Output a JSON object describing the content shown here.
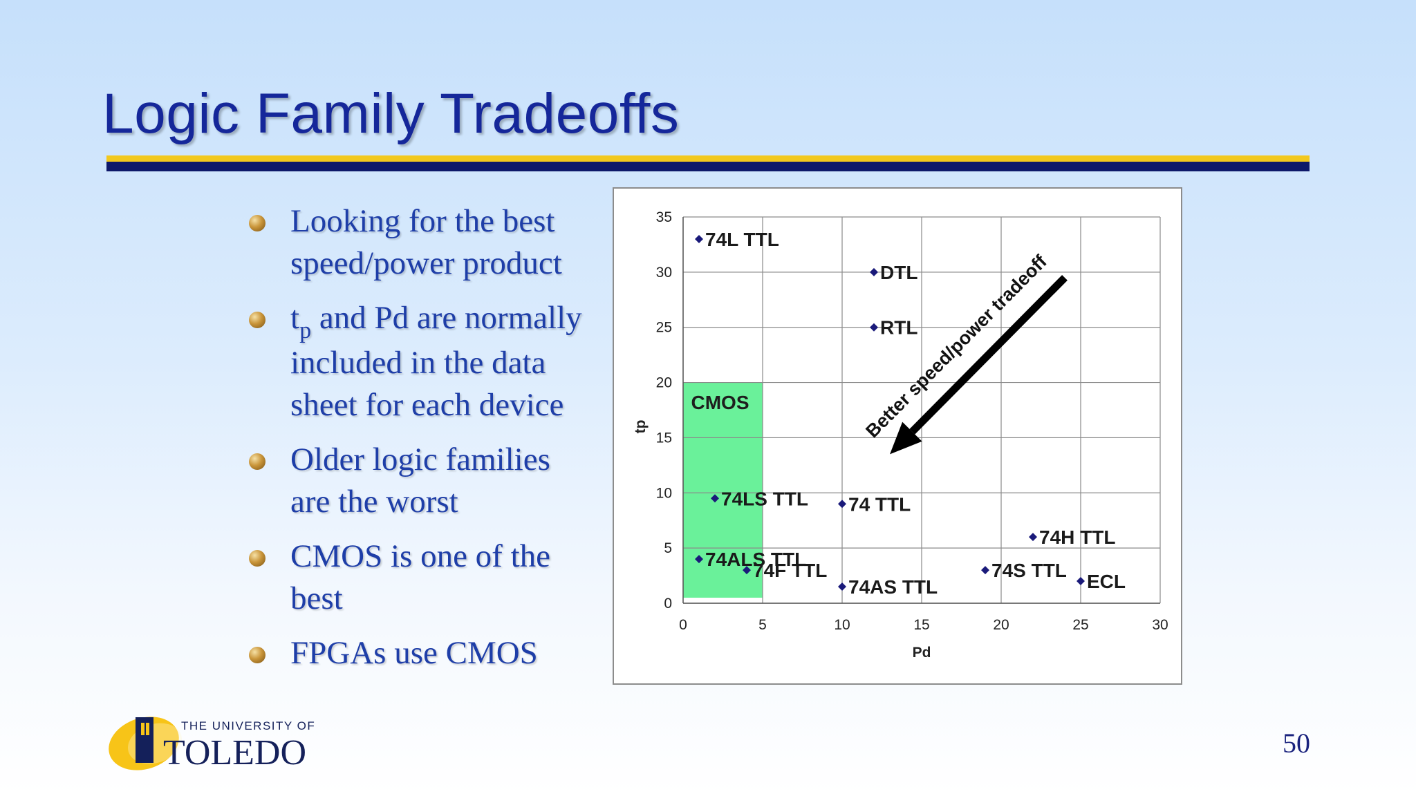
{
  "slide": {
    "title": "Logic Family Tradeoffs",
    "page_number": "50"
  },
  "bullets": [
    {
      "lines": [
        "Looking for the best",
        "speed/power product"
      ]
    },
    {
      "pre": "t",
      "sub": "p",
      "post": " and Pd are normally",
      "lines": [
        "included in the data",
        "sheet for each device"
      ]
    },
    {
      "lines": [
        "Older logic families",
        "are the worst"
      ]
    },
    {
      "lines": [
        "CMOS is one of the",
        "best"
      ]
    },
    {
      "lines": [
        "FPGAs use CMOS"
      ]
    }
  ],
  "logo": {
    "line1": "THE UNIVERSITY OF",
    "line2": "TOLEDO",
    "colors": {
      "gold": "#f7c418",
      "navy": "#14205a"
    }
  },
  "chart_data": {
    "type": "scatter",
    "xlabel": "Pd",
    "ylabel": "tp",
    "xlim": [
      0,
      30
    ],
    "ylim": [
      0,
      35
    ],
    "x_ticks": [
      0,
      5,
      10,
      15,
      20,
      25,
      30
    ],
    "y_ticks": [
      0,
      5,
      10,
      15,
      20,
      25,
      30,
      35
    ],
    "grid": true,
    "marker_color": "#1a1a7a",
    "points": [
      {
        "label": "74L TTL",
        "x": 1,
        "y": 33
      },
      {
        "label": "DTL",
        "x": 12,
        "y": 30
      },
      {
        "label": "RTL",
        "x": 12,
        "y": 25
      },
      {
        "label": "74LS TTL",
        "x": 2,
        "y": 9.5
      },
      {
        "label": "74 TTL",
        "x": 10,
        "y": 9
      },
      {
        "label": "74H TTL",
        "x": 22,
        "y": 6
      },
      {
        "label": "74ALS TTL",
        "x": 1,
        "y": 4
      },
      {
        "label": "74F TTL",
        "x": 4,
        "y": 3
      },
      {
        "label": "74AS TTL",
        "x": 10,
        "y": 1.5
      },
      {
        "label": "74S TTL",
        "x": 19,
        "y": 3
      },
      {
        "label": "ECL",
        "x": 25,
        "y": 2
      }
    ],
    "region": {
      "label": "CMOS",
      "x": [
        0,
        5
      ],
      "y": [
        0.5,
        20
      ],
      "color": "#6af19a"
    },
    "annotation": {
      "text": "Better speed/power tradeoff",
      "from": [
        24,
        29.5
      ],
      "to": [
        13,
        13.5
      ]
    }
  }
}
